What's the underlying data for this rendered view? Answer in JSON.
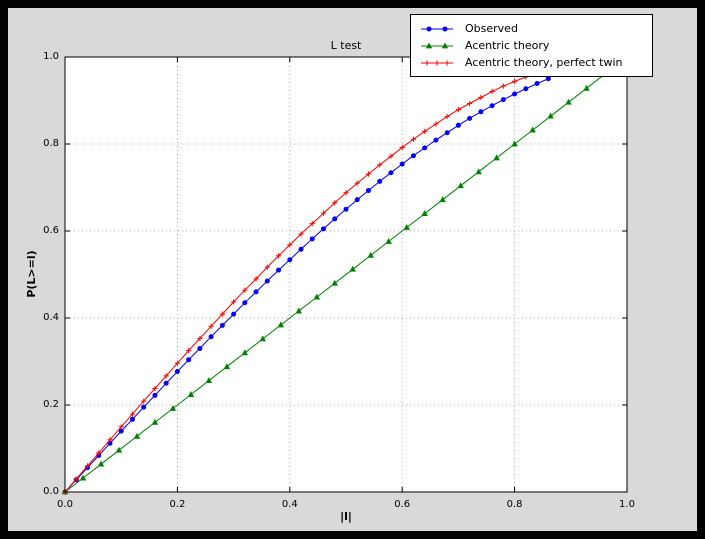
{
  "window": {
    "frame_color": "#000000",
    "figure_background": "#d9d9d9",
    "plot_background": "#ffffff",
    "grid_color": "#b0b0b0"
  },
  "chart_data": {
    "type": "line",
    "title": "L test",
    "xlabel": "|l|",
    "ylabel": "P(L>=l)",
    "xlim": [
      0.0,
      1.0
    ],
    "ylim": [
      0.0,
      1.0
    ],
    "xticks": [
      "0.0",
      "0.2",
      "0.4",
      "0.6",
      "0.8",
      "1.0"
    ],
    "yticks": [
      "0.0",
      "0.2",
      "0.4",
      "0.6",
      "0.8",
      "1.0"
    ],
    "grid": true,
    "legend": {
      "position": "upper right"
    },
    "series": [
      {
        "name": "Observed",
        "color": "#0000ff",
        "marker": "circle",
        "x": [
          0.0,
          0.02,
          0.04,
          0.06,
          0.08,
          0.1,
          0.12,
          0.14,
          0.16,
          0.18,
          0.2,
          0.22,
          0.24,
          0.26,
          0.28,
          0.3,
          0.32,
          0.34,
          0.36,
          0.38,
          0.4,
          0.42,
          0.44,
          0.46,
          0.48,
          0.5,
          0.52,
          0.54,
          0.56,
          0.58,
          0.6,
          0.62,
          0.64,
          0.66,
          0.68,
          0.7,
          0.72,
          0.74,
          0.76,
          0.78,
          0.8,
          0.82,
          0.84,
          0.86
        ],
        "y": [
          0.0,
          0.028,
          0.056,
          0.084,
          0.112,
          0.14,
          0.167,
          0.195,
          0.222,
          0.25,
          0.277,
          0.304,
          0.33,
          0.357,
          0.383,
          0.409,
          0.435,
          0.46,
          0.485,
          0.51,
          0.534,
          0.558,
          0.582,
          0.605,
          0.628,
          0.65,
          0.672,
          0.693,
          0.714,
          0.734,
          0.754,
          0.773,
          0.791,
          0.809,
          0.826,
          0.843,
          0.859,
          0.874,
          0.888,
          0.902,
          0.915,
          0.927,
          0.939,
          0.95
        ]
      },
      {
        "name": "Acentric theory",
        "color": "#008000",
        "marker": "triangle-up",
        "x": [
          0.0,
          0.032,
          0.064,
          0.096,
          0.128,
          0.16,
          0.192,
          0.224,
          0.256,
          0.288,
          0.32,
          0.352,
          0.384,
          0.416,
          0.448,
          0.48,
          0.512,
          0.544,
          0.576,
          0.608,
          0.64,
          0.672,
          0.704,
          0.736,
          0.768,
          0.8,
          0.832,
          0.864,
          0.896,
          0.928,
          0.96
        ],
        "y": [
          0.0,
          0.032,
          0.064,
          0.096,
          0.128,
          0.16,
          0.192,
          0.224,
          0.256,
          0.288,
          0.32,
          0.352,
          0.384,
          0.416,
          0.448,
          0.48,
          0.512,
          0.544,
          0.576,
          0.608,
          0.64,
          0.672,
          0.704,
          0.736,
          0.768,
          0.8,
          0.832,
          0.864,
          0.896,
          0.928,
          0.96
        ]
      },
      {
        "name": "Acentric theory, perfect twin",
        "color": "#ff0000",
        "marker": "plus",
        "x": [
          0.0,
          0.02,
          0.04,
          0.06,
          0.08,
          0.1,
          0.12,
          0.14,
          0.16,
          0.18,
          0.2,
          0.22,
          0.24,
          0.26,
          0.28,
          0.3,
          0.32,
          0.34,
          0.36,
          0.38,
          0.4,
          0.42,
          0.44,
          0.46,
          0.48,
          0.5,
          0.52,
          0.54,
          0.56,
          0.58,
          0.6,
          0.62,
          0.64,
          0.66,
          0.68,
          0.7,
          0.72,
          0.74,
          0.76,
          0.78,
          0.8,
          0.82,
          0.84,
          0.86
        ],
        "y": [
          0.0,
          0.03,
          0.06,
          0.09,
          0.12,
          0.15,
          0.179,
          0.209,
          0.238,
          0.267,
          0.296,
          0.325,
          0.353,
          0.381,
          0.409,
          0.437,
          0.464,
          0.49,
          0.517,
          0.543,
          0.568,
          0.593,
          0.617,
          0.641,
          0.665,
          0.688,
          0.71,
          0.731,
          0.752,
          0.772,
          0.792,
          0.811,
          0.829,
          0.846,
          0.863,
          0.879,
          0.893,
          0.907,
          0.921,
          0.933,
          0.944,
          0.954,
          0.964,
          0.972
        ]
      }
    ]
  }
}
